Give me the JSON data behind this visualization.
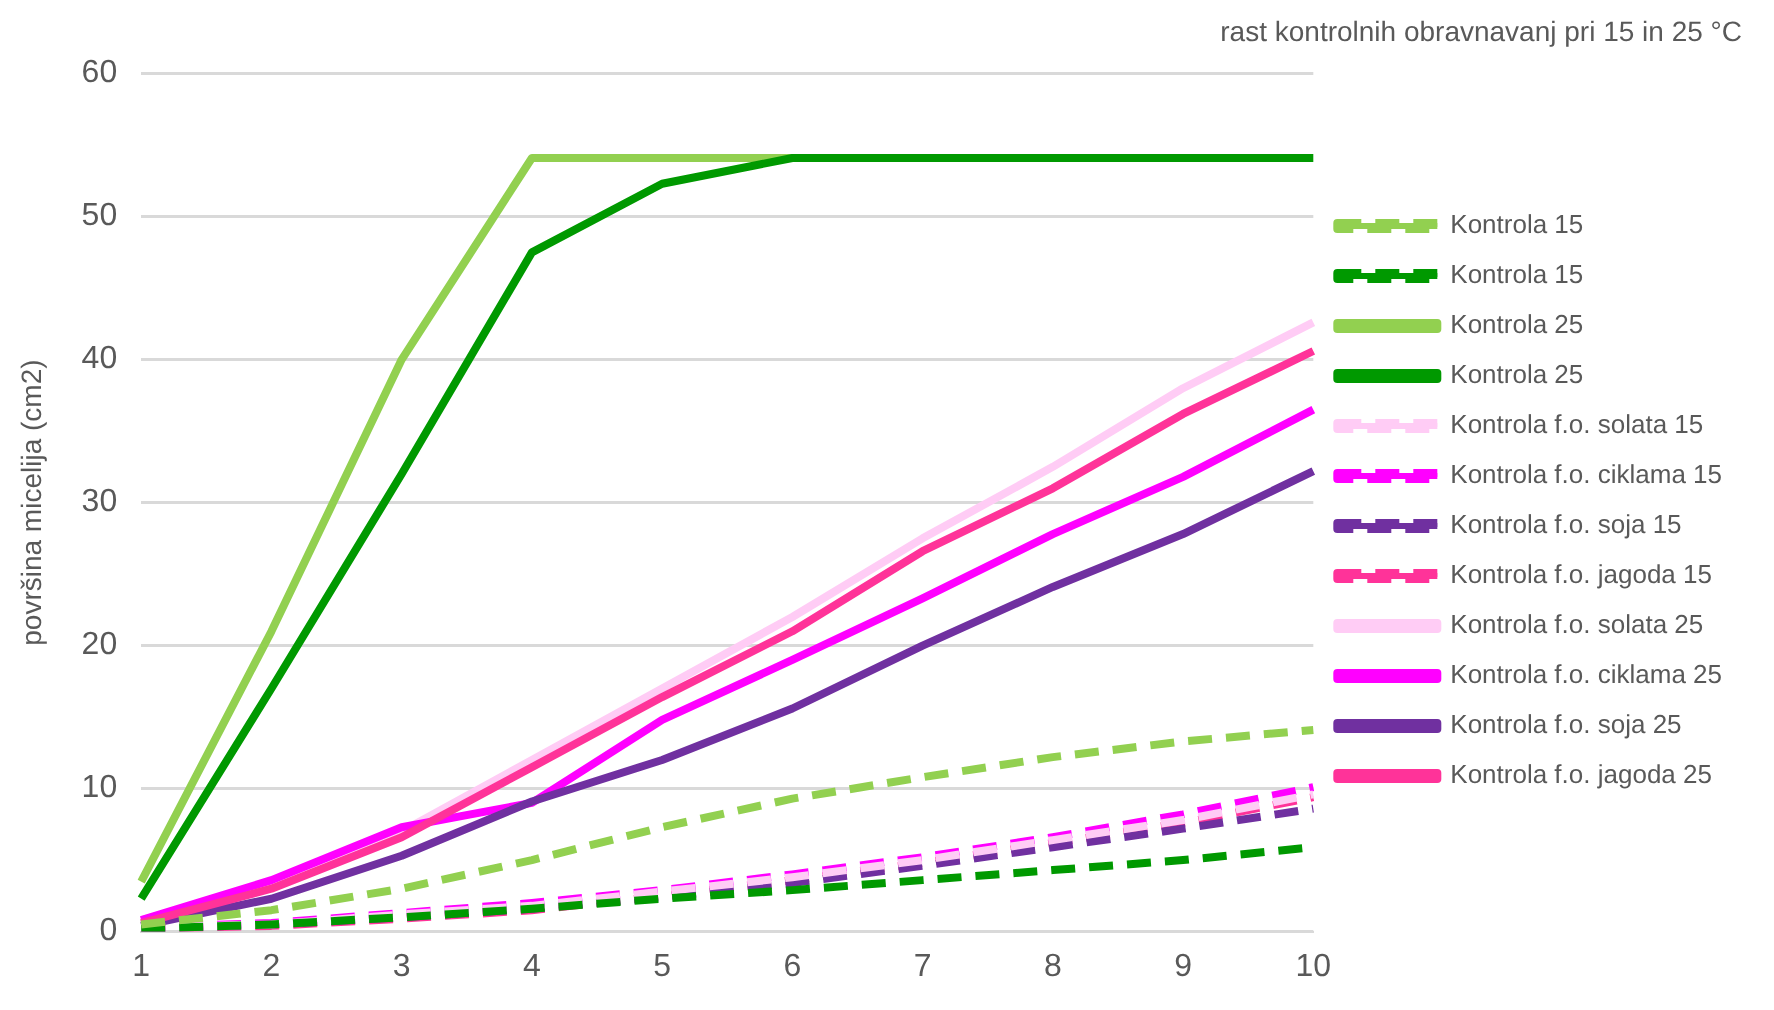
{
  "chart_data": {
    "type": "line",
    "title": "rast kontrolnih obravnavanj pri 15 in 25 °C",
    "ylabel": "površina micelija (cm2)",
    "categories": [
      "1",
      "2",
      "3",
      "4",
      "5",
      "6",
      "7",
      "8",
      "9",
      "10"
    ],
    "ylim": [
      0,
      60
    ],
    "yticks": [
      0,
      10,
      20,
      30,
      40,
      50,
      60
    ],
    "grid": "y",
    "legend": "right",
    "marker": "none",
    "series": [
      {
        "name": "Kontrola 15",
        "color": "#92d050",
        "line_style": "dashed",
        "values": [
          0.5,
          1.5,
          3,
          5,
          7.3,
          9.3,
          10.8,
          12.2,
          13.3,
          14.1
        ]
      },
      {
        "name": "Kontrola 15",
        "color": "#009900",
        "line_style": "dashed",
        "values": [
          0.2,
          0.5,
          1,
          1.6,
          2.3,
          2.9,
          3.6,
          4.3,
          5,
          5.9
        ]
      },
      {
        "name": "Kontrola 25",
        "color": "#92d050",
        "line_style": "solid",
        "values": [
          3.5,
          21,
          40,
          54.1,
          54.1,
          54.1,
          null,
          null,
          null,
          null
        ]
      },
      {
        "name": "Kontrola 25",
        "color": "#009900",
        "line_style": "solid",
        "values": [
          2.3,
          17,
          32,
          47.5,
          52.3,
          54.1,
          54.1,
          54.1,
          54.1,
          54.1
        ]
      },
      {
        "name": "Kontrola f.o. solata 15",
        "color": "#ffccf5",
        "line_style": "dashed",
        "values": [
          0.3,
          0.5,
          1.2,
          1.8,
          2.8,
          3.8,
          5,
          6.4,
          7.8,
          9.6
        ]
      },
      {
        "name": "Kontrola f.o. ciklama 15",
        "color": "#ff00ff",
        "line_style": "dashed",
        "values": [
          0.3,
          0.6,
          1.3,
          2,
          2.9,
          4,
          5.2,
          6.6,
          8.2,
          10.1
        ]
      },
      {
        "name": "Kontrola f.o. soja 15",
        "color": "#7030a0",
        "line_style": "dashed",
        "values": [
          0.2,
          0.5,
          1,
          1.6,
          2.4,
          3.4,
          4.6,
          5.9,
          7.2,
          8.6
        ]
      },
      {
        "name": "Kontrola f.o. jagoda 15",
        "color": "#ff3399",
        "line_style": "dashed",
        "values": [
          0.2,
          0.4,
          0.9,
          1.5,
          2.5,
          3.6,
          4.8,
          6.2,
          7.6,
          9.4
        ]
      },
      {
        "name": "Kontrola f.o. solata 25",
        "color": "#ffccf5",
        "line_style": "solid",
        "values": [
          0.8,
          3.2,
          7,
          12,
          17,
          22,
          27.5,
          32.5,
          38,
          42.6
        ]
      },
      {
        "name": "Kontrola f.o. ciklama 25",
        "color": "#ff00ff",
        "line_style": "solid",
        "values": [
          0.8,
          3.6,
          7.3,
          9,
          14.8,
          19,
          23.3,
          27.8,
          31.8,
          36.5
        ]
      },
      {
        "name": "Kontrola f.o. soja 25",
        "color": "#7030a0",
        "line_style": "solid",
        "values": [
          0.4,
          2.3,
          5.3,
          9.1,
          12,
          15.6,
          20,
          24.1,
          27.8,
          32.2
        ]
      },
      {
        "name": "Kontrola f.o. jagoda 25",
        "color": "#ff3399",
        "line_style": "solid",
        "values": [
          0.6,
          3,
          6.6,
          11.5,
          16.4,
          21,
          26.6,
          31,
          36.2,
          40.6
        ]
      }
    ]
  }
}
